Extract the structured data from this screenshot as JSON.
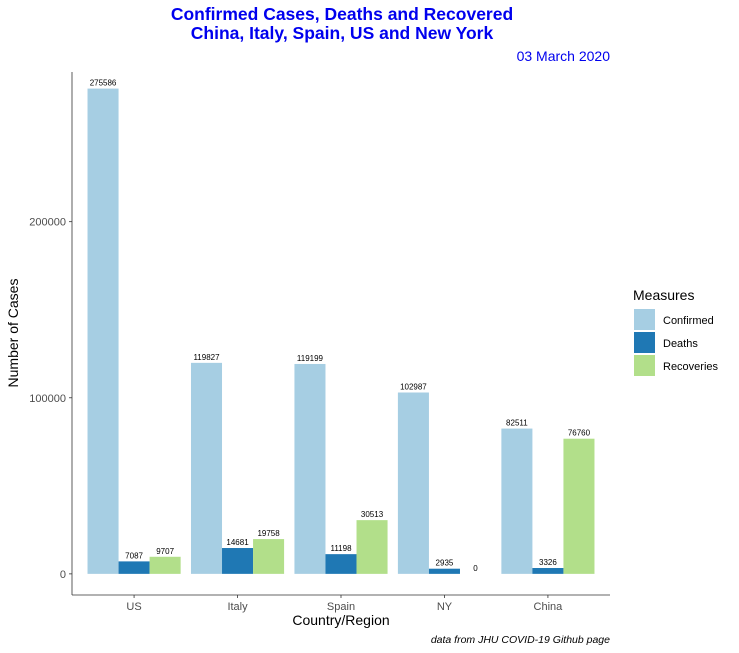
{
  "chart_data": {
    "type": "bar",
    "title": "Confirmed Cases, Deaths and Recovered",
    "title_line2": "China, Italy, Spain, US and New York",
    "subtitle": "03 March 2020",
    "xlabel": "Country/Region",
    "ylabel": "Number of Cases",
    "caption": "data from JHU COVID-19 Github page",
    "categories": [
      "US",
      "Italy",
      "Spain",
      "NY",
      "China"
    ],
    "ylim": [
      -12000,
      285000
    ],
    "yticks": [
      0,
      100000,
      200000
    ],
    "ytick_labels": [
      "0",
      "100000",
      "200000"
    ],
    "grid": false,
    "legend": {
      "title": "Measures",
      "position": "right"
    },
    "series": [
      {
        "name": "Confirmed",
        "color": "#a6cee3",
        "values": [
          275586,
          119827,
          119199,
          102987,
          82511
        ]
      },
      {
        "name": "Deaths",
        "color": "#1f78b4",
        "values": [
          7087,
          14681,
          11198,
          2935,
          3326
        ]
      },
      {
        "name": "Recoveries",
        "color": "#b2df8a",
        "values": [
          9707,
          19758,
          30513,
          0,
          76760
        ]
      }
    ]
  }
}
